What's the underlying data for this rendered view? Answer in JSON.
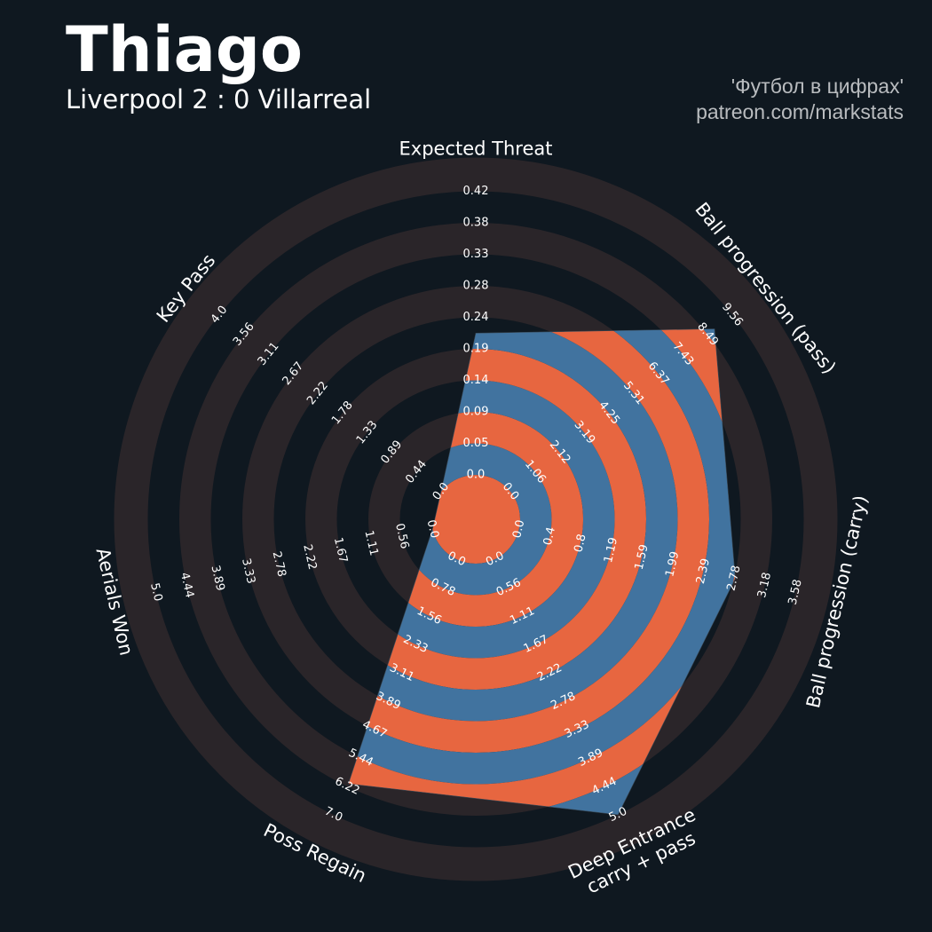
{
  "header": {
    "title": "Thiago",
    "subtitle": "Liverpool 2 : 0 Villarreal",
    "credit_line1": "'Футбол в цифрах'",
    "credit_line2": "patreon.com/markstats"
  },
  "colors": {
    "background": "#0f1820",
    "ring_band": "#2a2529",
    "fill_orange": "#e76640",
    "fill_blue": "#41739f",
    "text": "#ffffff",
    "credit": "#b9bcbf"
  },
  "chart_data": {
    "type": "radar",
    "parameters": [
      {
        "name": "Expected Threat",
        "min": 0.0,
        "max": 0.42,
        "value": 0.21,
        "ticks": [
          "0.0",
          "0.05",
          "0.09",
          "0.14",
          "0.19",
          "0.24",
          "0.28",
          "0.33",
          "0.38",
          "0.42"
        ]
      },
      {
        "name": "Ball progression (pass)",
        "min": 0.0,
        "max": 9.56,
        "value": 8.8,
        "ticks": [
          "0.0",
          "1.06",
          "2.12",
          "3.19",
          "4.25",
          "5.31",
          "6.37",
          "7.43",
          "8.49",
          "9.56"
        ]
      },
      {
        "name": "Ball progression (carry)",
        "min": 0.0,
        "max": 3.58,
        "value": 2.8,
        "ticks": [
          "0.0",
          "0.4",
          "0.8",
          "1.19",
          "1.59",
          "1.99",
          "2.39",
          "2.78",
          "3.18",
          "3.58"
        ]
      },
      {
        "name": "Deep Entrance\ncarry + pass",
        "min": 0.0,
        "max": 5.0,
        "value": 5.0,
        "ticks": [
          "0.0",
          "0.56",
          "1.11",
          "1.67",
          "2.22",
          "2.78",
          "3.33",
          "3.89",
          "4.44",
          "5.0"
        ]
      },
      {
        "name": "Poss Regain",
        "min": 0.0,
        "max": 7.0,
        "value": 6.15,
        "ticks": [
          "0.0",
          "0.78",
          "1.56",
          "2.33",
          "3.11",
          "3.89",
          "4.67",
          "5.44",
          "6.22",
          "7.0"
        ]
      },
      {
        "name": "Aerials Won",
        "min": 0.0,
        "max": 5.0,
        "value": 0.0,
        "ticks": [
          "0.0",
          "0.56",
          "1.11",
          "1.67",
          "2.22",
          "2.78",
          "3.33",
          "3.89",
          "4.44",
          "5.0"
        ]
      },
      {
        "name": "Key Pass",
        "min": 0.0,
        "max": 4.0,
        "value": 0.0,
        "ticks": [
          "0.0",
          "0.44",
          "0.89",
          "1.33",
          "1.78",
          "2.22",
          "2.67",
          "3.11",
          "3.56",
          "4.0"
        ]
      }
    ]
  }
}
